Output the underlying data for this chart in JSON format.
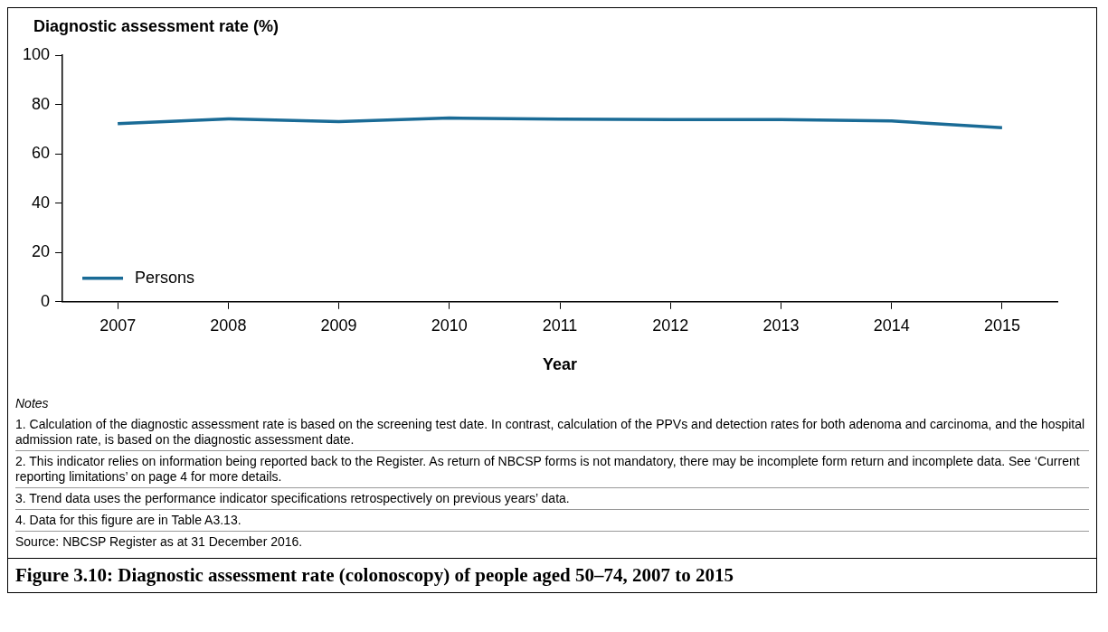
{
  "chart_data": {
    "type": "line",
    "title": "Figure 3.10: Diagnostic assessment rate (colonoscopy) of people aged 50–74, 2007 to 2015",
    "xlabel": "Year",
    "ylabel": "Diagnostic assessment rate (%)",
    "categories": [
      "2007",
      "2008",
      "2009",
      "2010",
      "2011",
      "2012",
      "2013",
      "2014",
      "2015"
    ],
    "series": [
      {
        "name": "Persons",
        "color": "#1a6b96",
        "values": [
          72.2,
          74.2,
          73.1,
          74.5,
          74.1,
          73.9,
          73.9,
          73.3,
          70.6
        ]
      }
    ],
    "ylim": [
      0,
      100
    ],
    "yticks": [
      0,
      20,
      40,
      60,
      80,
      100
    ],
    "grid": false,
    "legend": "bottom left",
    "marker": "none",
    "line_style": "solid",
    "annotations": [
      "Notes",
      "1. Calculation of the diagnostic assessment rate is based on the screening test date. In contrast, calculation of the PPVs and detection rates for both adenoma and carcinoma, and the hospital admission rate, is based on the diagnostic assessment date.",
      "2. This indicator relies on information being reported back to the Register. As return of NBCSP forms is not mandatory, there may be incomplete form return and incomplete data. See ‘Current reporting limitations’ on page 4 for more details.",
      "3. Trend data uses the performance indicator specifications retrospectively on previous years’ data.",
      "4. Data for this figure are in Table A3.13.",
      "Source: NBCSP Register as at 31 December 2016."
    ]
  }
}
